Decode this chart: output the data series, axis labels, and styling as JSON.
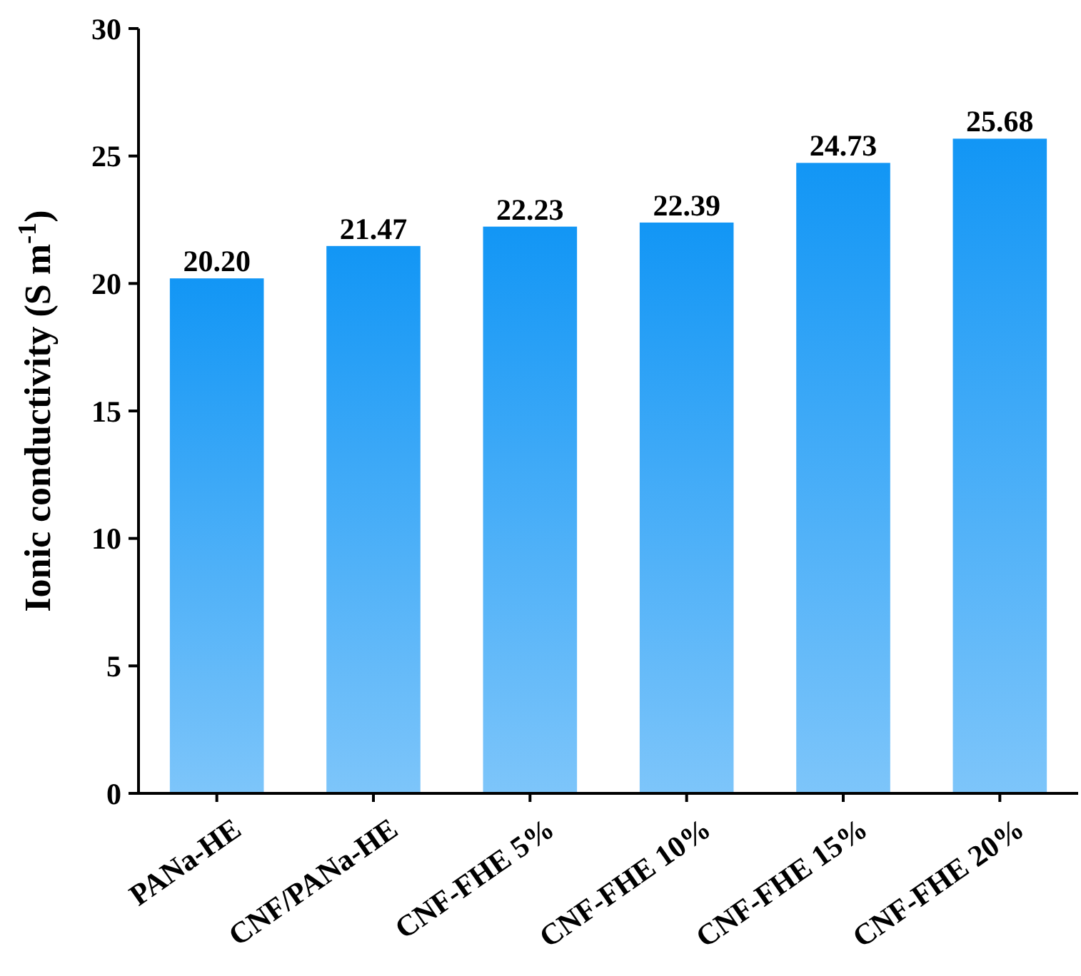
{
  "chart_data": {
    "type": "bar",
    "ylabel": "Ionic conductivity (S m$^{-1}$)",
    "categories": [
      "PANa-HE",
      "CNF/PANa-HE",
      "CNF-FHE 5%",
      "CNF-FHE 10%",
      "CNF-FHE 15%",
      "CNF-FHE 20%"
    ],
    "values": [
      20.2,
      21.47,
      22.23,
      22.39,
      24.73,
      25.68
    ],
    "value_labels": [
      "20.20",
      "21.47",
      "22.23",
      "22.39",
      "24.73",
      "25.68"
    ],
    "color": "#1296f5",
    "ylim": [
      0,
      30
    ],
    "yticks": [
      0,
      5,
      10,
      15,
      20,
      25,
      30
    ]
  }
}
